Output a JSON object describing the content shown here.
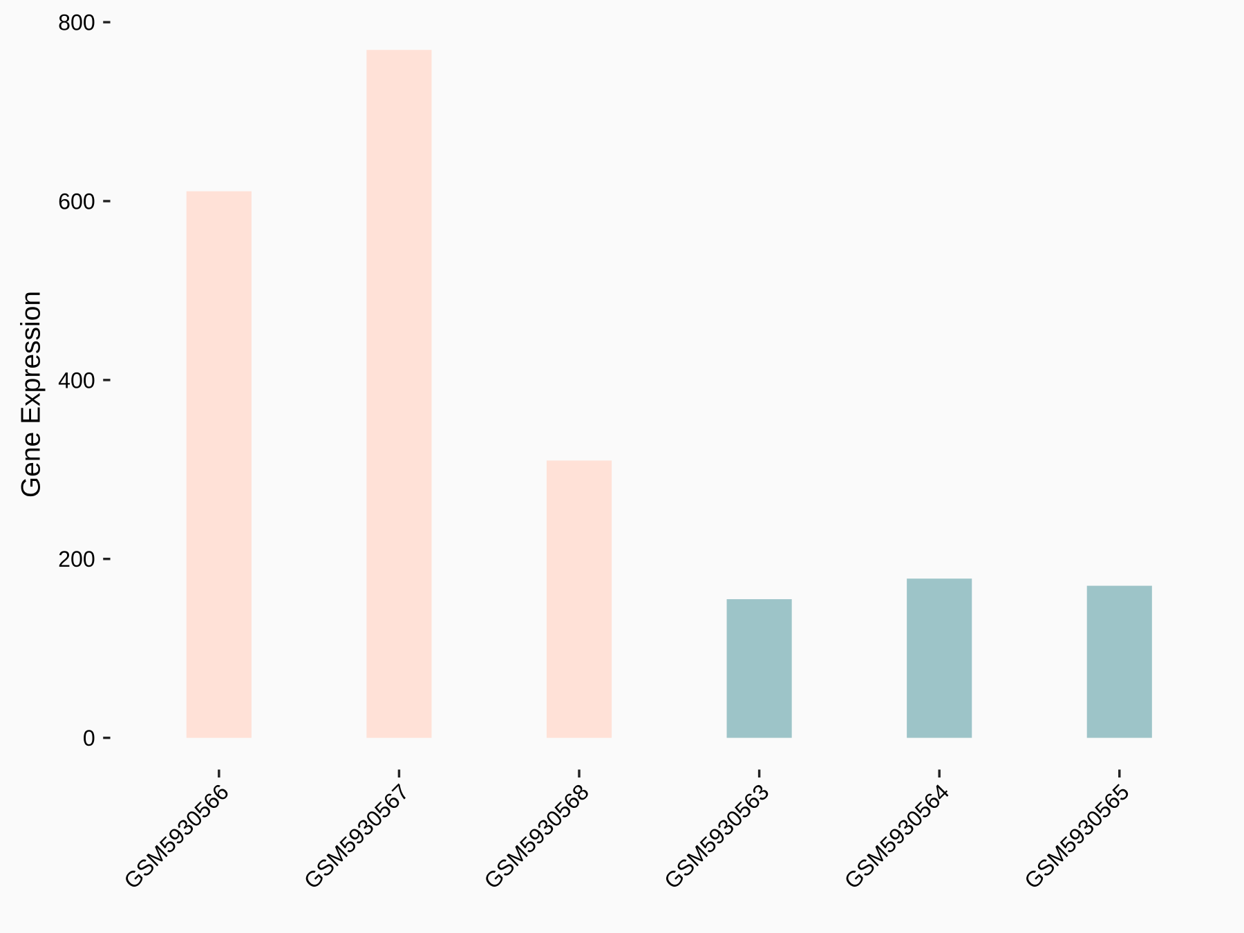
{
  "chart_data": {
    "type": "bar",
    "y_label": "Gene Expression",
    "categories": [
      "GSM5930566",
      "GSM5930567",
      "GSM5930568",
      "GSM5930563",
      "GSM5930564",
      "GSM5930565"
    ],
    "values": [
      611,
      769,
      310,
      155,
      178,
      170
    ],
    "colors": [
      "#ffe1d7",
      "#ffe1d7",
      "#ffe1d7",
      "#9dc4c8",
      "#9dc4c8",
      "#9dc4c8"
    ],
    "ylim": [
      -36,
      810
    ],
    "yticks": [
      0,
      200,
      400,
      600,
      800
    ],
    "grid": false
  }
}
